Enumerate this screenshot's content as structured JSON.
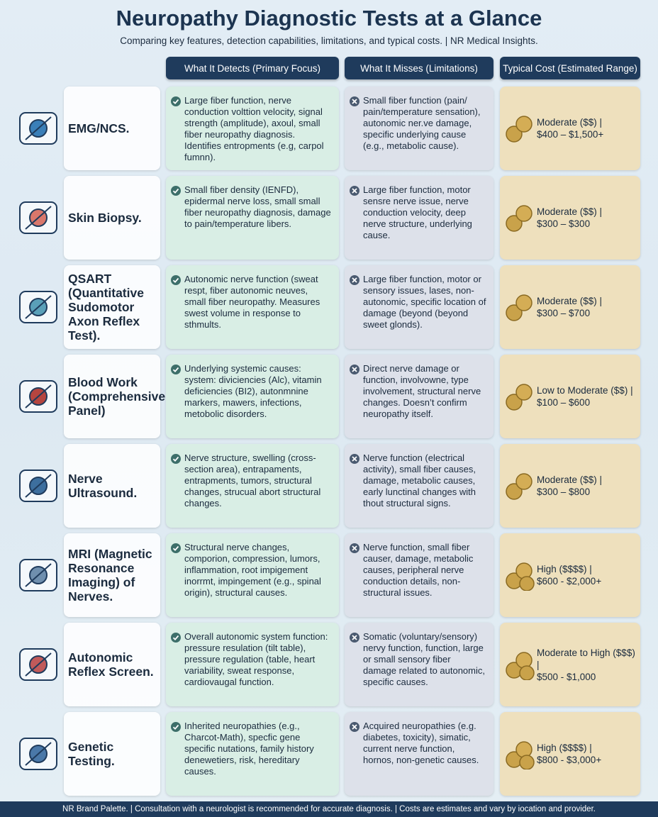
{
  "header": {
    "title": "Neuropathy Diagnostic Tests at a Glance",
    "subtitle": "Comparing key features, detection capabilities, limitations, and typical costs. | NR Medical Insights."
  },
  "columns": [
    "What It Detects (Primary Focus)",
    "What It Misses (Limitations)",
    "Typical Cost (Estimated Range)"
  ],
  "rows": [
    {
      "test": "EMG/NCS.",
      "detects": "Large fiber function, nerve conduction volttion velocity, signal strength (amplitude), axoul, small fiber neuropathy diagnosis. Identifies entropments (e.g, carpol fumnn).",
      "misses": "Small fiber function (pain/ pain/temperature sensation), autonomic ner.ve damage, specific underlying cause (e.g., metabolic cause).",
      "cost_level": "Moderate ($$) |",
      "cost_range": "$400 – $1,500+"
    },
    {
      "test": "Skin Biopsy.",
      "detects": "Small fiber density (IENFD), epidermal nerve loss, small small fiber neuropathy diagnosis, damage to pain/temperature libers.",
      "misses": "Large fiber function, motor sensre nerve issue, nerve conduction velocity, deep nerve structure, underlying cause.",
      "cost_level": "Moderate ($$) |",
      "cost_range": "$300 – $300"
    },
    {
      "test": "QSART (Quantitative Sudomotor Axon Reflex Test).",
      "detects": "Autonomic nerve function (sweat respt, fiber autonomic neuves, small fiber neuropathy. Measures swest volume in response to sthmults.",
      "misses": "Large fiber function, motor or sensory issues, lases, non-autonomic, specific location of damage (beyond (beyond sweet glonds).",
      "cost_level": "Moderate ($$) |",
      "cost_range": "$300 – $700"
    },
    {
      "test": "Blood Work (Comprehensive Panel)",
      "detects": "Underlying systemic causes: system: diviciencies (Alc), vitamin deficiencies (BI2), autonmnine markers, mawers, infections, metobolic disorders.",
      "misses": "Direct nerve damage or function, involvowne, type involvement, structural nerve changes. Doesn’t confirm neuropathy itself.",
      "cost_level": "Low to Moderate ($$) |",
      "cost_range": "$100 – $600"
    },
    {
      "test": "Nerve Ultrasound.",
      "detects": "Nerve structure, swelling (cross-section area), entrapaments, entrapments, tumors, structural changes, strucual abort structural changes.",
      "misses": "Nerve function (electrical activity), small fiber causes, damage, metabolic causes, early lunctinal changes with thout structural signs.",
      "cost_level": "Moderate ($$) |",
      "cost_range": "$300 – $800"
    },
    {
      "test": "MRI (Magnetic Resonance Imaging) of Nerves.",
      "detects": "Structural nerve changes, comporion, compression, lumors, inflammation, root impigement inorrmt, impingement (e.g., spinal origin), structural causes.",
      "misses": "Nerve function, small fiber causer, damage, metabolic causes, peripheral nerve conduction details, non-structural issues.",
      "cost_level": "High ($$$$) |",
      "cost_range": "$600 - $2,000+"
    },
    {
      "test": "Autonomic Reflex Screen.",
      "detects": "Overall autonomic system function: pressure resulation (tilt table), pressure regulation (table, heart variability, sweat response, cardiovaugal function.",
      "misses": "Somatic (voluntary/sensory) nervy function, function, large or small sensory fiber damage related to autonomic, specific causes.",
      "cost_level": "Moderate to High ($$$) |",
      "cost_range": "$500 - $1,000"
    },
    {
      "test": "Genetic Testing.",
      "detects": "Inherited neuropathies (e.g., Charcot-Math), specfic gene specific nutations, family history denewetiers, risk, hereditary causes.",
      "misses": "Acquired neuropathies (e.g. diabetes, toxicity), simatic, current nerve function, hornos, non-genetic causes.",
      "cost_level": "High ($$$$) |",
      "cost_range": "$800 - $3,000+"
    }
  ],
  "footer": "NR Brand Palette. | Consultation with a neurologist is recommended for accurate diagnosis. | Costs are estimates and vary by iocation and provider."
}
